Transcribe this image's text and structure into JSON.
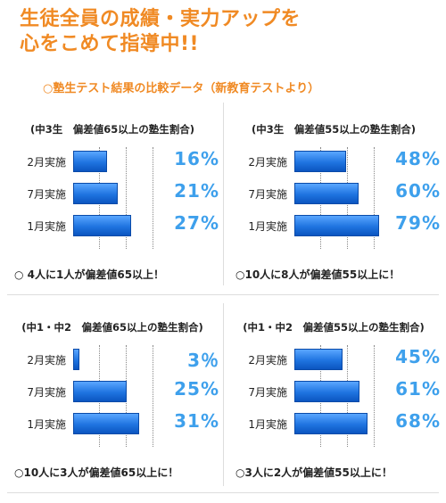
{
  "headline": {
    "line1": "生徒全員の成績・実力アップを",
    "line2": "心をこめて指導中!!"
  },
  "subtitle": "○塾生テスト結果の比較データ（新教育テストより）",
  "panels": [
    {
      "title": "(中3生　偏差値65以上の塾生割合)",
      "rows": [
        {
          "label": "2月実施",
          "pct_text": "16%"
        },
        {
          "label": "7月実施",
          "pct_text": "21%"
        },
        {
          "label": "1月実施",
          "pct_text": "27%"
        }
      ],
      "note": "○ 4人に1人が偏差値65以上！"
    },
    {
      "title": "(中3生　偏差値55以上の塾生割合)",
      "rows": [
        {
          "label": "2月実施",
          "pct_text": "48%"
        },
        {
          "label": "7月実施",
          "pct_text": "60%"
        },
        {
          "label": "1月実施",
          "pct_text": "79%"
        }
      ],
      "note": "○10人に8人が偏差値55以上に！"
    },
    {
      "title": "(中1・中2　偏差値65以上の塾生割合)",
      "rows": [
        {
          "label": "2月実施",
          "pct_text": "3％"
        },
        {
          "label": "7月実施",
          "pct_text": "25%"
        },
        {
          "label": "1月実施",
          "pct_text": "31%"
        }
      ],
      "note": "○10人に3人が偏差値65以上に！"
    },
    {
      "title": "(中1・中2　偏差値55以上の塾生割合)",
      "rows": [
        {
          "label": "2月実施",
          "pct_text": "45%"
        },
        {
          "label": "7月実施",
          "pct_text": "61%"
        },
        {
          "label": "1月実施",
          "pct_text": "68%"
        }
      ],
      "note": "○3人に2人が偏差値55以上に！"
    }
  ],
  "chart_data": [
    {
      "type": "bar",
      "title": "(中3生　偏差値65以上の塾生割合)",
      "categories": [
        "2月実施",
        "7月実施",
        "1月実施"
      ],
      "values": [
        16,
        21,
        27
      ],
      "xlim": [
        0,
        50
      ]
    },
    {
      "type": "bar",
      "title": "(中3生　偏差値55以上の塾生割合)",
      "categories": [
        "2月実施",
        "7月実施",
        "1月実施"
      ],
      "values": [
        48,
        60,
        79
      ],
      "xlim": [
        0,
        100
      ]
    },
    {
      "type": "bar",
      "title": "(中1・中2　偏差値65以上の塾生割合)",
      "categories": [
        "2月実施",
        "7月実施",
        "1月実施"
      ],
      "values": [
        3,
        25,
        31
      ],
      "xlim": [
        0,
        50
      ]
    },
    {
      "type": "bar",
      "title": "(中1・中2　偏差値55以上の塾生割合)",
      "categories": [
        "2月実施",
        "7月実施",
        "1月実施"
      ],
      "values": [
        45,
        61,
        68
      ],
      "xlim": [
        0,
        100
      ]
    }
  ]
}
